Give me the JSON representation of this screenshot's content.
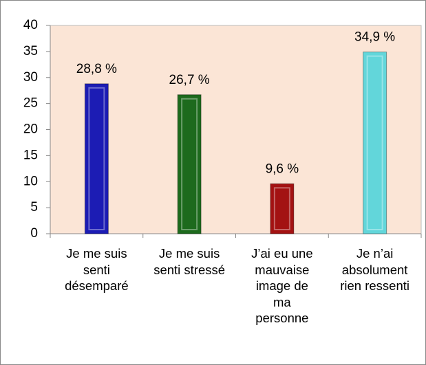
{
  "chart_data": {
    "type": "bar",
    "categories": [
      "Je me suis senti désemparé",
      "Je me suis senti stressé",
      "J’ai eu une mauvaise image de ma personne",
      "Je n’ai absolument rien ressenti"
    ],
    "values": [
      28.8,
      26.7,
      9.6,
      34.9
    ],
    "value_labels": [
      "28,8 %",
      "26,7 %",
      "9,6 %",
      "34,9 %"
    ],
    "colors": [
      "#1c1cb4",
      "#1d6a1d",
      "#a31212",
      "#62d6da"
    ],
    "ylim": [
      0,
      40
    ],
    "yticks": [
      0,
      5,
      10,
      15,
      20,
      25,
      30,
      35,
      40
    ],
    "grid": false
  }
}
